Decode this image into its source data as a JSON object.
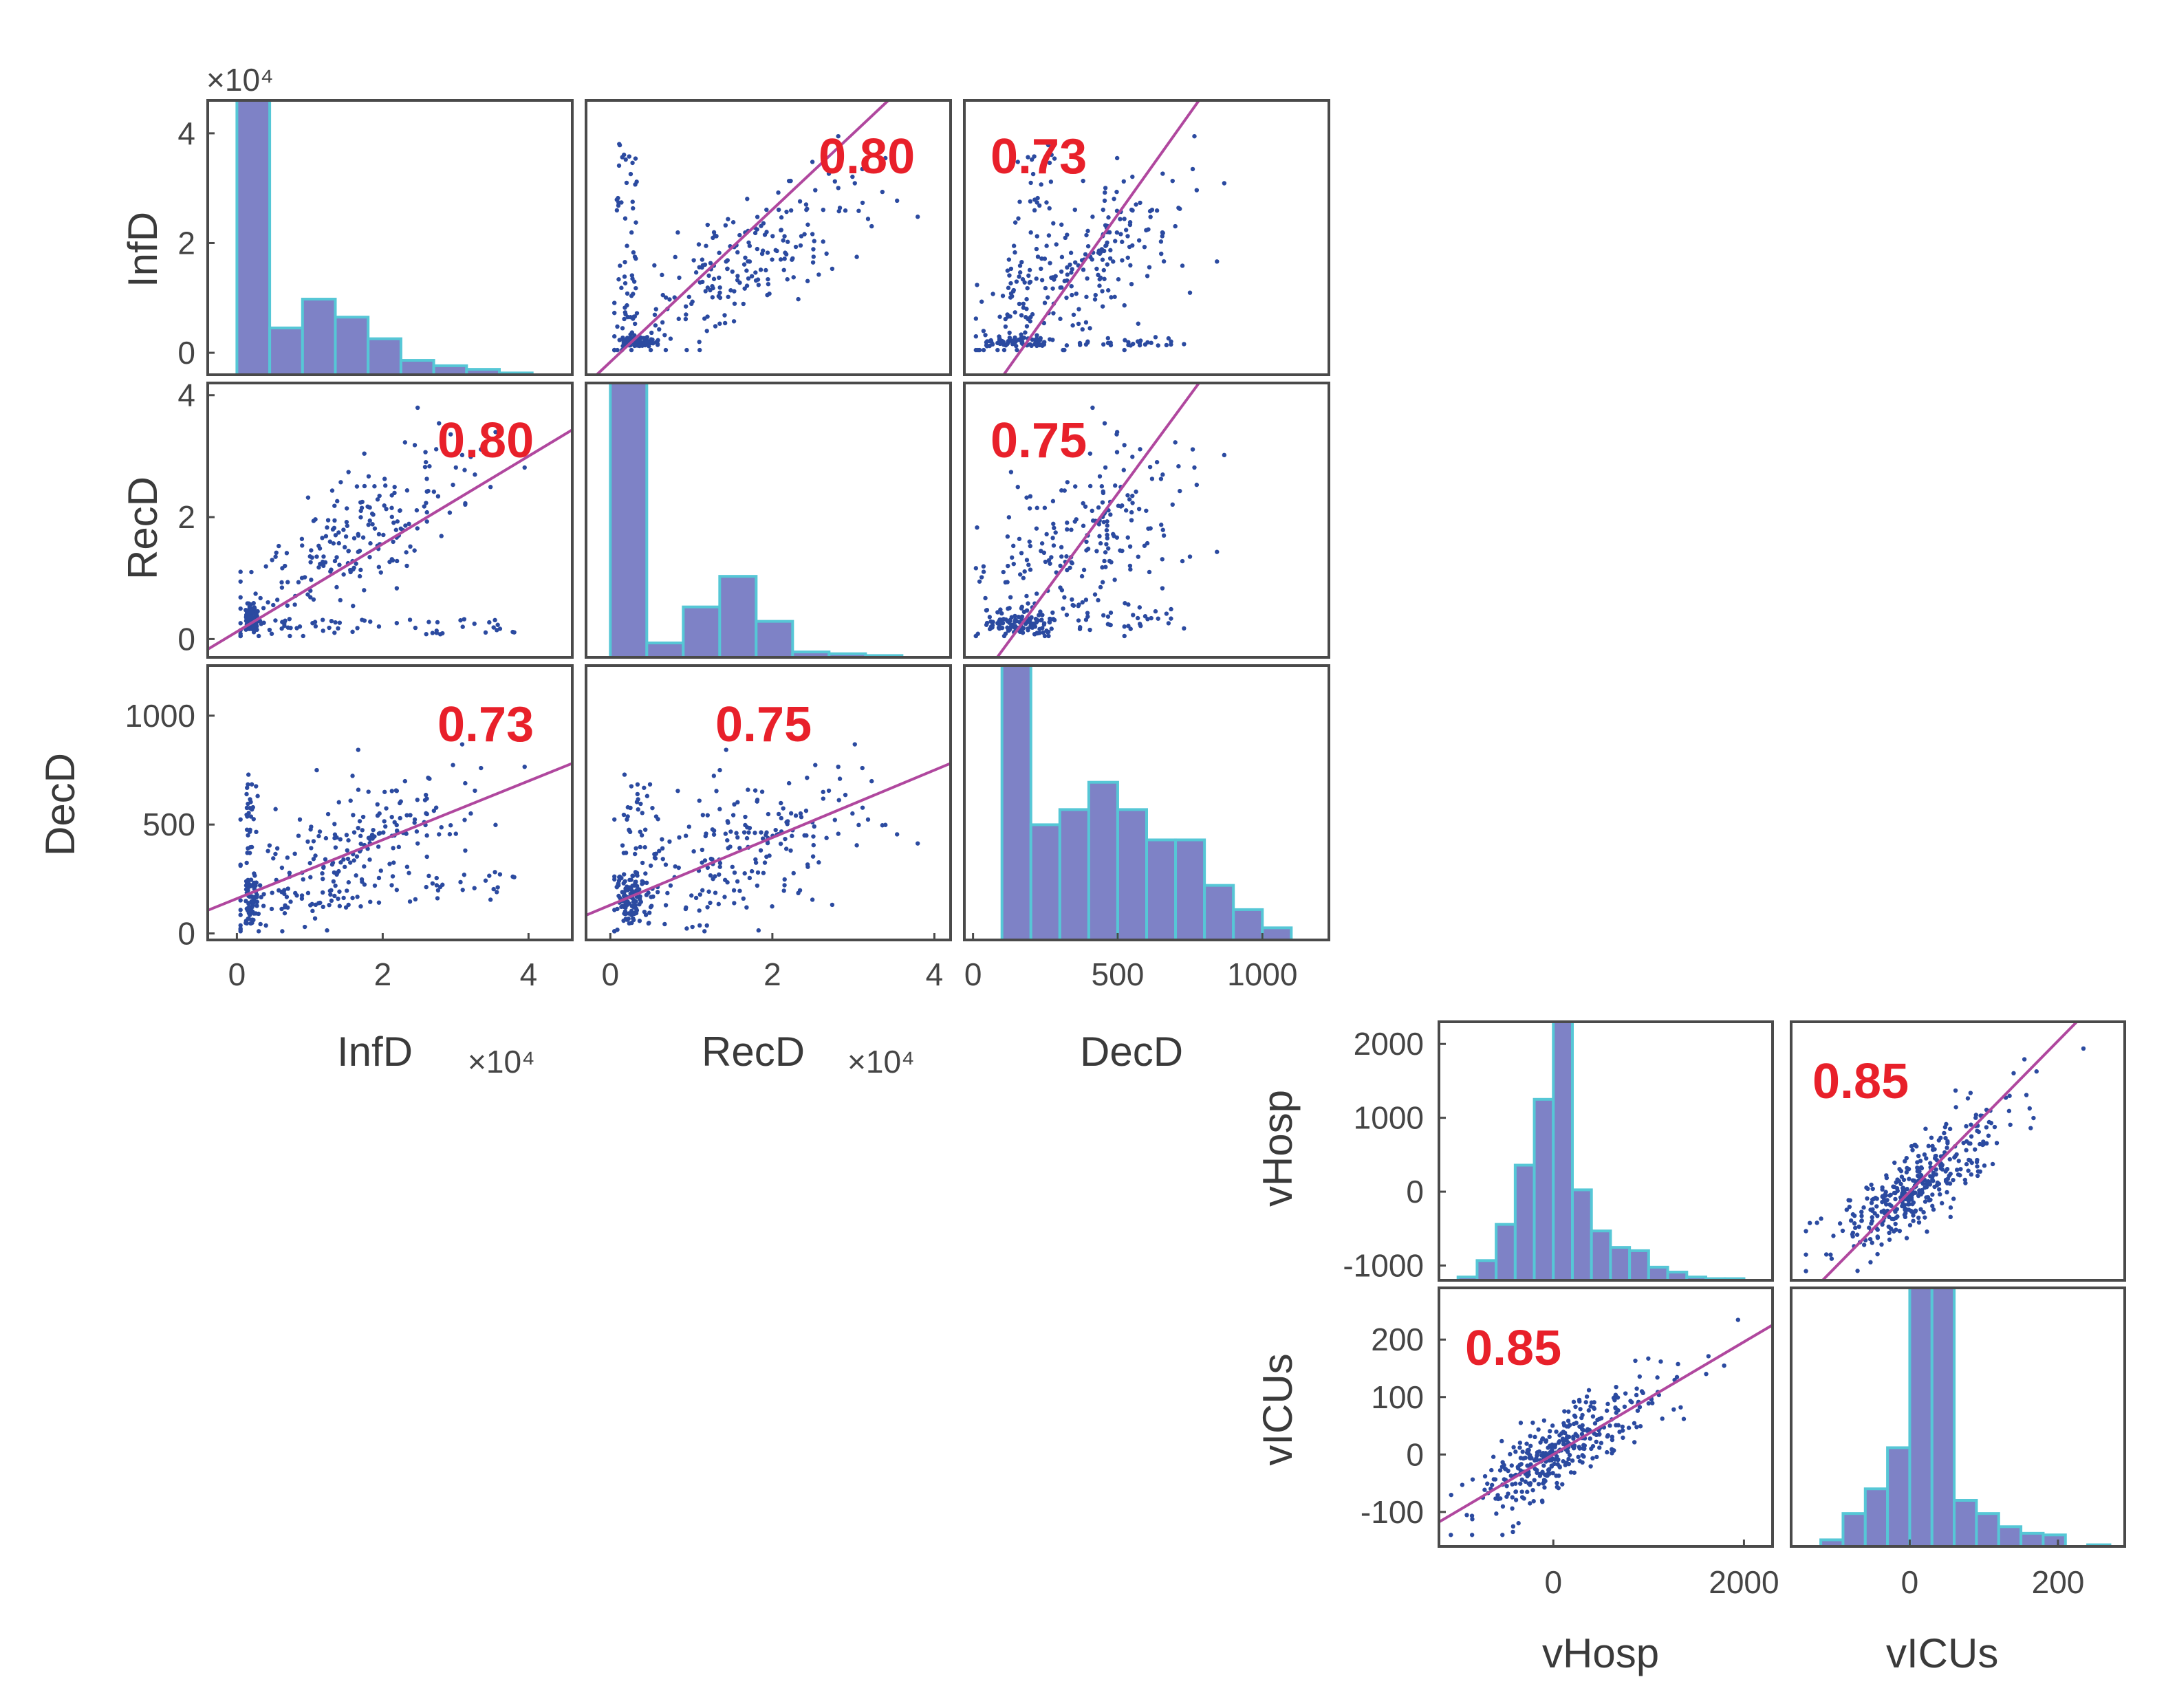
{
  "figure": {
    "type": "scatter-matrix"
  },
  "colors": {
    "bar_fill": "#7e82c6",
    "bar_edge": "#56c7d6",
    "points": "#2b4aa0",
    "fit_line": "#b0479e",
    "correlation_text": "#e8202a",
    "axes": "#4a4a4a"
  },
  "chart_data": [
    {
      "type": "scatter-matrix",
      "variables": [
        "InfD",
        "RecD",
        "DecD"
      ],
      "axis_labels": {
        "x": [
          "InfD",
          "RecD",
          "DecD"
        ],
        "y": [
          "InfD",
          "RecD",
          "DecD"
        ]
      },
      "ranges": {
        "InfD": [
          -4000,
          46000
        ],
        "RecD": [
          -3000,
          42000
        ],
        "DecD": [
          -30,
          1230
        ]
      },
      "exponent_labels": {
        "InfD_top": "×10⁴",
        "InfD_x": "×10⁴",
        "RecD_x": "×10⁴"
      },
      "tick_labels": {
        "InfD_x": [
          "0",
          "2",
          "4"
        ],
        "RecD_x": [
          "0",
          "2",
          "4"
        ],
        "DecD_x": [
          "0",
          "500",
          "1000"
        ],
        "InfD_y": [
          "0",
          "2",
          "4"
        ],
        "RecD_y": [
          "0",
          "2",
          "4"
        ],
        "DecD_y": [
          "0",
          "500",
          "1000"
        ]
      },
      "histograms": {
        "InfD": {
          "edges": [
            -4000,
            0,
            4500,
            9000,
            13500,
            18000,
            22500,
            27000,
            31500,
            36000,
            40500
          ],
          "counts": [
            0,
            160,
            26,
            42,
            32,
            20,
            8,
            5,
            3,
            1
          ]
        },
        "RecD": {
          "edges": [
            -3000,
            0,
            4500,
            9000,
            13500,
            18000,
            22500,
            27000,
            31500,
            36000
          ],
          "counts": [
            0,
            160,
            8,
            28,
            45,
            20,
            3,
            2,
            1
          ]
        },
        "DecD": {
          "edges": [
            -30,
            0,
            100,
            200,
            300,
            400,
            500,
            600,
            700,
            800,
            900,
            1000,
            1100
          ],
          "counts": [
            0,
            0,
            95,
            38,
            43,
            52,
            43,
            33,
            33,
            18,
            10,
            4
          ]
        }
      },
      "correlations": [
        {
          "pair": [
            "InfD",
            "RecD"
          ],
          "r": "0.80"
        },
        {
          "pair": [
            "InfD",
            "DecD"
          ],
          "r": "0.73"
        },
        {
          "pair": [
            "RecD",
            "DecD"
          ],
          "r": "0.75"
        }
      ],
      "fit_lines": {
        "RecD_vs_InfD": {
          "slope": 0.72,
          "intercept": 1200
        },
        "DecD_vs_InfD": {
          "slope": 0.0135,
          "intercept": 160
        },
        "DecD_vs_RecD": {
          "slope": 0.0155,
          "intercept": 130
        }
      },
      "n_points": 360
    },
    {
      "type": "scatter-matrix",
      "variables": [
        "vHosp",
        "vICUs"
      ],
      "axis_labels": {
        "x": [
          "vHosp",
          "vICUs"
        ],
        "y": [
          "vHosp",
          "vICUs"
        ]
      },
      "ranges": {
        "vHosp": [
          -1200,
          2300
        ],
        "vICUs": [
          -160,
          290
        ]
      },
      "tick_labels": {
        "vHosp_x": [
          "0",
          "2000"
        ],
        "vICUs_x": [
          "0",
          "200"
        ],
        "vHosp_y": [
          "-1000",
          "0",
          "1000",
          "2000"
        ],
        "vICUs_y": [
          "-100",
          "0",
          "100",
          "200"
        ]
      },
      "histograms": {
        "vHosp": {
          "edges": [
            -1000,
            -800,
            -600,
            -400,
            -200,
            0,
            200,
            400,
            600,
            800,
            1000,
            1200,
            1400,
            1600,
            1800,
            2000
          ],
          "counts": [
            2,
            12,
            34,
            70,
            110,
            165,
            55,
            30,
            20,
            18,
            8,
            5,
            2,
            1,
            1
          ]
        },
        "vICUs": {
          "edges": [
            -120,
            -90,
            -60,
            -30,
            0,
            30,
            60,
            90,
            120,
            150,
            180,
            210,
            240,
            270
          ],
          "counts": [
            4,
            20,
            35,
            60,
            165,
            165,
            28,
            20,
            12,
            8,
            7,
            0,
            1
          ]
        }
      },
      "correlations": [
        {
          "pair": [
            "vHosp",
            "vICUs"
          ],
          "r": "0.85"
        }
      ],
      "fit_lines": {
        "vICUs_vs_vHosp": {
          "slope": 0.098,
          "intercept": 0
        }
      },
      "n_points": 380
    }
  ]
}
